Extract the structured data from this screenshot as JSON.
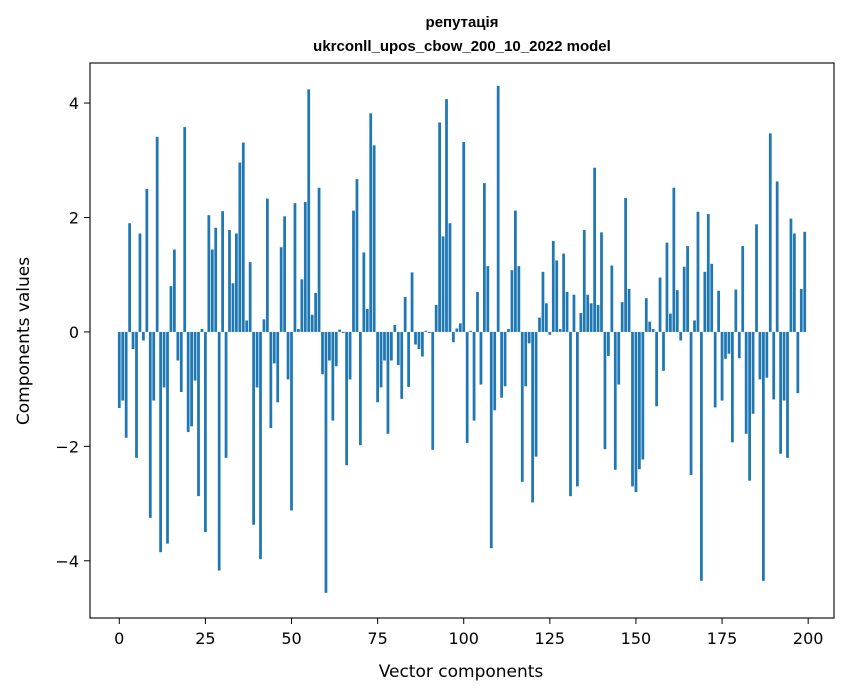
{
  "chart_data": {
    "type": "bar",
    "title": "репутація",
    "subtitle": "ukrconll_upos_cbow_200_10_2022 model",
    "xlabel": "Vector components",
    "ylabel": "Components values",
    "xlim": [
      -8.5,
      207.5
    ],
    "ylim": [
      -5.0,
      4.7
    ],
    "xticks": [
      0,
      25,
      50,
      75,
      100,
      125,
      150,
      175,
      200
    ],
    "xtick_labels": [
      "0",
      "25",
      "50",
      "75",
      "100",
      "125",
      "150",
      "175",
      "200"
    ],
    "yticks": [
      -4,
      -2,
      0,
      2,
      4
    ],
    "ytick_labels": [
      "−4",
      "−2",
      "0",
      "2",
      "4"
    ],
    "grid": false,
    "bar_color": "#1f77b4",
    "values": [
      -1.33,
      -1.2,
      -1.85,
      1.9,
      -0.3,
      -2.2,
      1.72,
      -0.15,
      2.5,
      -3.25,
      -1.2,
      3.41,
      -3.85,
      -0.97,
      -3.7,
      0.8,
      1.44,
      -0.5,
      -1.05,
      3.58,
      -1.75,
      -1.65,
      -0.85,
      -2.87,
      0.05,
      -3.5,
      2.04,
      1.44,
      1.82,
      -4.17,
      2.11,
      -2.2,
      1.78,
      0.85,
      1.72,
      2.96,
      3.31,
      0.2,
      1.22,
      -3.37,
      -0.97,
      -3.97,
      0.22,
      2.33,
      -1.68,
      -0.55,
      -1.23,
      1.48,
      2.02,
      -0.83,
      -3.12,
      2.25,
      0.05,
      0.92,
      2.27,
      4.24,
      0.3,
      0.68,
      2.52,
      -0.74,
      -4.56,
      -0.5,
      -1.55,
      -0.6,
      0.04,
      -0.02,
      -2.33,
      -0.83,
      2.12,
      2.67,
      -1.98,
      1.39,
      0.4,
      3.82,
      3.26,
      -1.23,
      -0.97,
      -0.5,
      -1.78,
      -0.5,
      0.12,
      -0.58,
      -1.17,
      0.61,
      -0.96,
      1.04,
      -0.22,
      -0.3,
      -0.43,
      0.02,
      -0.02,
      -2.06,
      0.47,
      3.66,
      1.67,
      4.07,
      1.9,
      -0.18,
      0.06,
      0.15,
      3.32,
      -1.94,
      0.02,
      -1.55,
      0.7,
      -0.92,
      2.6,
      1.15,
      -3.78,
      -1.37,
      4.3,
      -1.15,
      -0.95,
      0.05,
      1.08,
      2.12,
      1.15,
      -2.62,
      -0.95,
      -0.2,
      -2.98,
      -2.18,
      0.25,
      1.05,
      0.5,
      -0.05,
      1.59,
      1.25,
      0.05,
      1.37,
      0.7,
      -2.87,
      0.65,
      -2.7,
      0.33,
      1.78,
      0.65,
      0.5,
      2.87,
      0.47,
      1.74,
      -2.05,
      -0.42,
      1.16,
      -2.41,
      -0.92,
      0.52,
      2.34,
      0.75,
      -2.7,
      -2.8,
      -2.4,
      -2.23,
      0.59,
      0.18,
      0.05,
      -1.3,
      0.95,
      -0.68,
      1.56,
      0.32,
      2.52,
      0.73,
      -0.15,
      1.14,
      1.5,
      -2.5,
      0.2,
      2.1,
      -4.35,
      1.05,
      2.06,
      1.19,
      -1.32,
      0.72,
      -1.2,
      -0.47,
      -0.38,
      -1.93,
      0.74,
      -0.46,
      1.5,
      -1.78,
      -2.6,
      -1.43,
      1.88,
      -0.83,
      -4.35,
      -0.8,
      3.47,
      -1.18,
      2.63,
      -2.13,
      -1.2,
      -2.2,
      1.98,
      1.72,
      -1.07,
      0.75,
      1.75
    ]
  }
}
